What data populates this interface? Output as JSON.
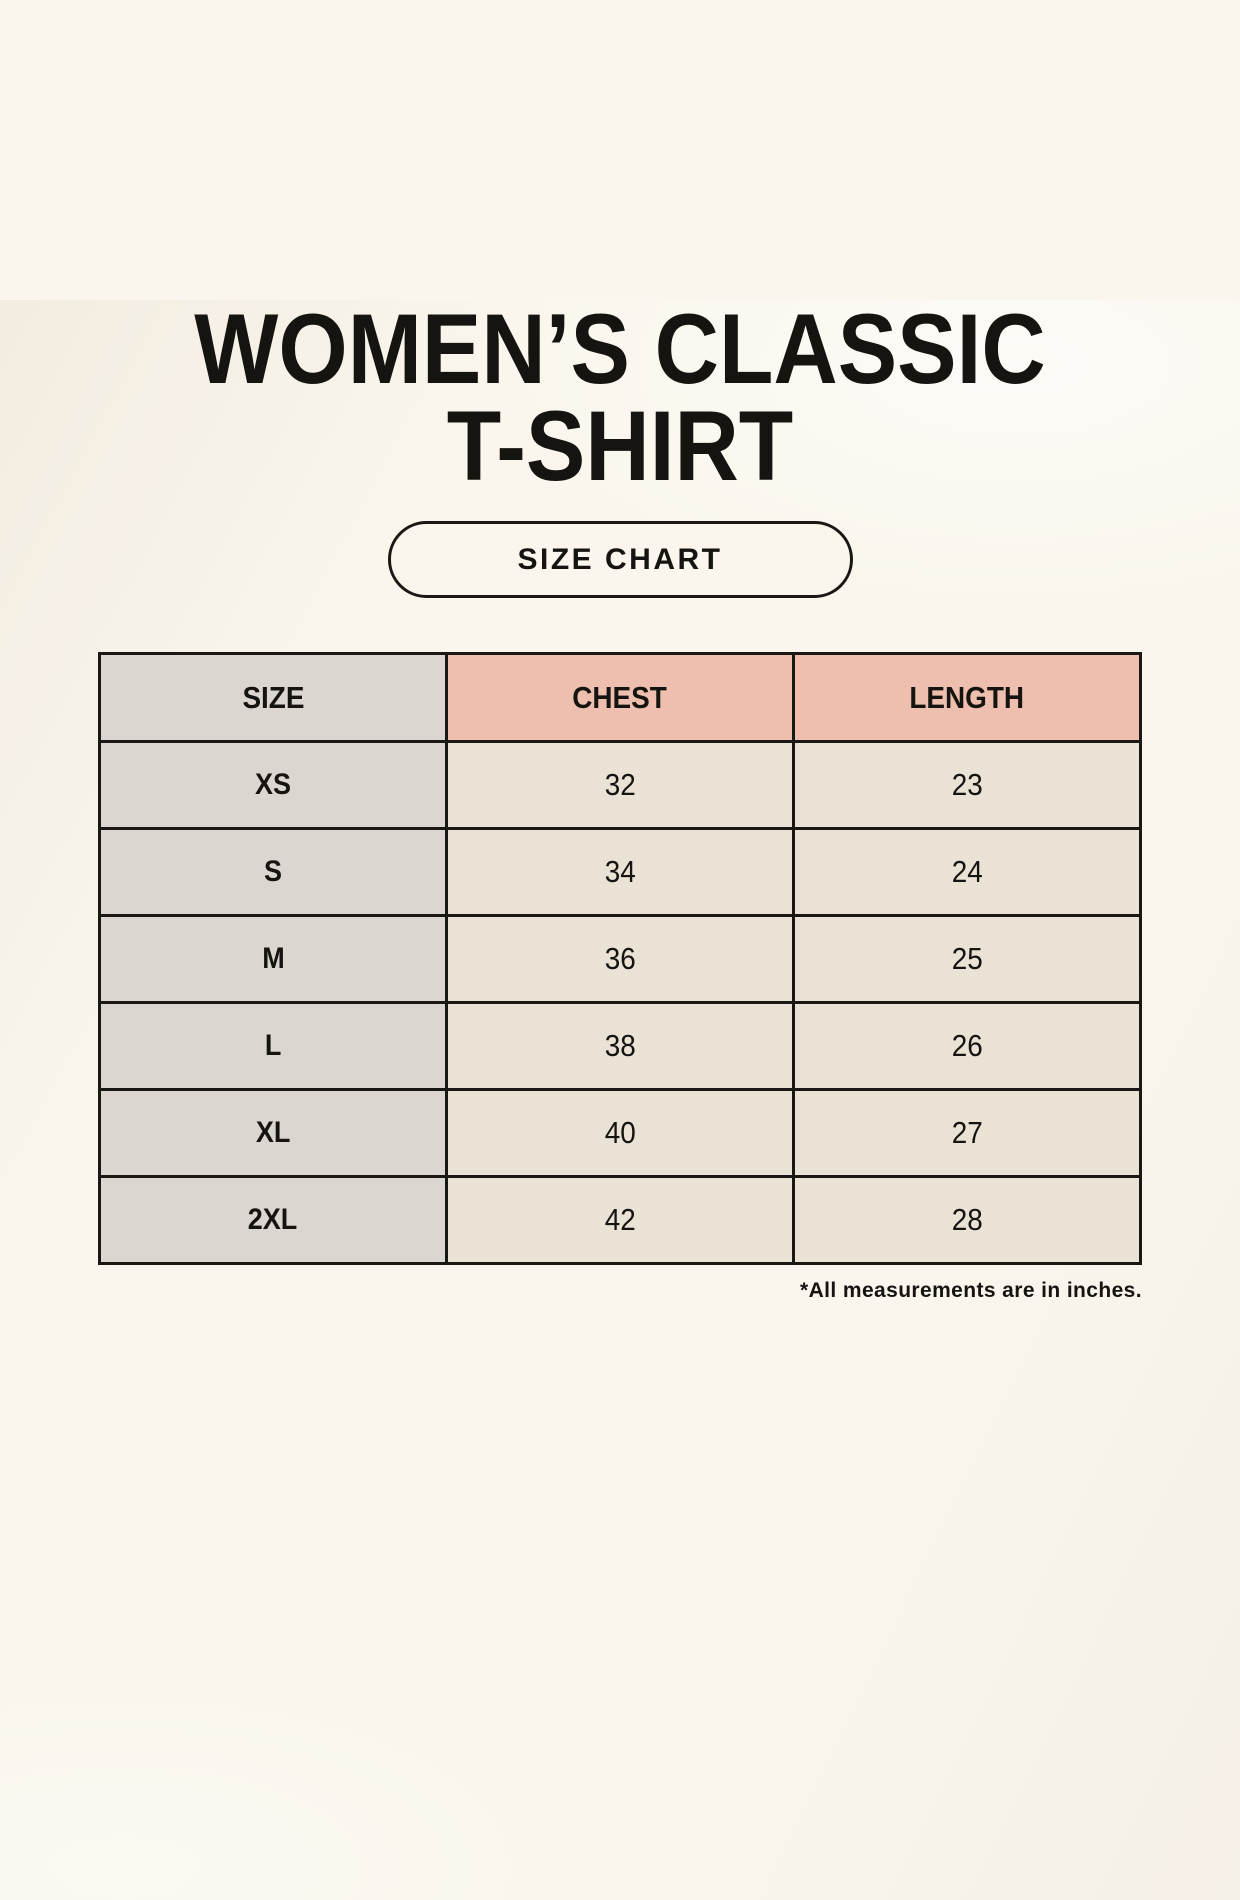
{
  "header": {
    "title_line1": "WOMEN’S CLASSIC",
    "title_line2": "T-SHIRT",
    "size_chart_button": "SIZE CHART"
  },
  "chart_data": {
    "type": "table",
    "title": "WOMEN’S CLASSIC T-SHIRT SIZE CHART",
    "columns": [
      "SIZE",
      "CHEST",
      "LENGTH"
    ],
    "rows": [
      {
        "size": "XS",
        "chest": 32,
        "length": 23
      },
      {
        "size": "S",
        "chest": 34,
        "length": 24
      },
      {
        "size": "M",
        "chest": 36,
        "length": 25
      },
      {
        "size": "L",
        "chest": 38,
        "length": 26
      },
      {
        "size": "XL",
        "chest": 40,
        "length": 27
      },
      {
        "size": "2XL",
        "chest": 42,
        "length": 28
      }
    ],
    "units_note": "*All measurements are in inches."
  },
  "colors": {
    "background": "#faf6ed",
    "size_column_bg": "#dcd6d1",
    "header_accent_bg": "#eebfae",
    "data_cell_bg": "#e9e2d5",
    "border": "#1a1815",
    "text": "#161411"
  }
}
